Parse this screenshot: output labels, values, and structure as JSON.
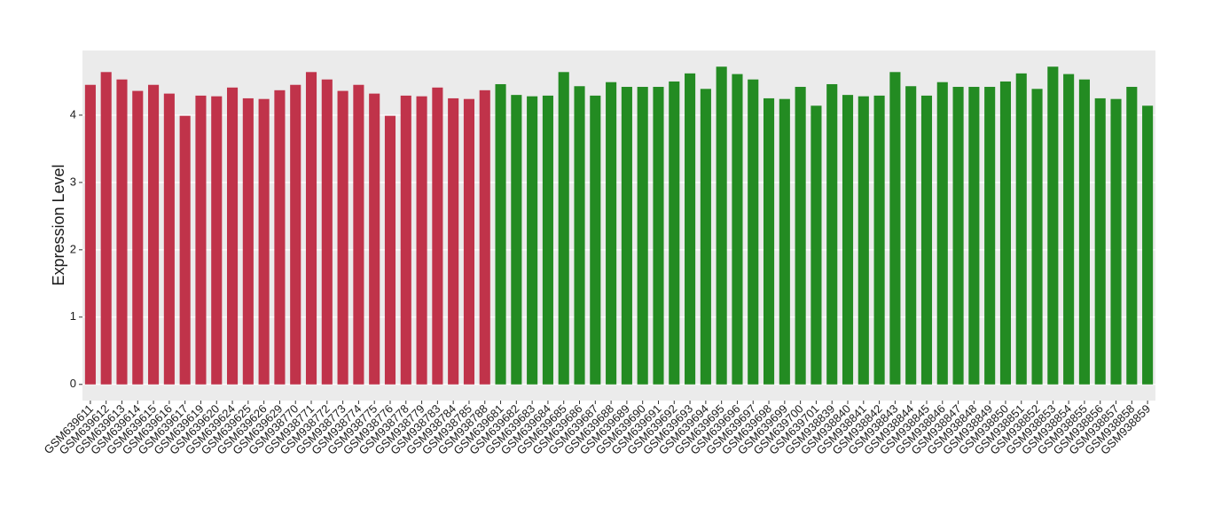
{
  "chart_data": {
    "type": "bar",
    "y_label": "Expression Level",
    "categories": [
      "GSM639611",
      "GSM639612",
      "GSM639613",
      "GSM639614",
      "GSM639615",
      "GSM639616",
      "GSM639617",
      "GSM639619",
      "GSM639620",
      "GSM639624",
      "GSM639625",
      "GSM639626",
      "GSM639629",
      "GSM938770",
      "GSM938771",
      "GSM938772",
      "GSM938773",
      "GSM938774",
      "GSM938775",
      "GSM938776",
      "GSM938778",
      "GSM938779",
      "GSM938783",
      "GSM938784",
      "GSM938785",
      "GSM938788",
      "GSM639681",
      "GSM639682",
      "GSM639683",
      "GSM639684",
      "GSM639685",
      "GSM639686",
      "GSM639687",
      "GSM639688",
      "GSM639689",
      "GSM639690",
      "GSM639691",
      "GSM639692",
      "GSM639693",
      "GSM639694",
      "GSM639695",
      "GSM639696",
      "GSM639697",
      "GSM639698",
      "GSM639699",
      "GSM639700",
      "GSM639701",
      "GSM938839",
      "GSM938840",
      "GSM938841",
      "GSM938842",
      "GSM938843",
      "GSM938844",
      "GSM938845",
      "GSM938846",
      "GSM938847",
      "GSM938848",
      "GSM938849",
      "GSM938850",
      "GSM938851",
      "GSM938852",
      "GSM938853",
      "GSM938854",
      "GSM938855",
      "GSM938856",
      "GSM938857",
      "GSM938858",
      "GSM938859"
    ],
    "values": [
      4.45,
      4.64,
      4.53,
      4.36,
      4.45,
      4.32,
      3.99,
      4.29,
      4.28,
      4.41,
      4.25,
      4.24,
      4.37,
      4.45,
      4.64,
      4.53,
      4.36,
      4.45,
      4.32,
      3.99,
      4.29,
      4.28,
      4.41,
      4.25,
      4.24,
      4.37,
      4.46,
      4.3,
      4.28,
      4.29,
      4.64,
      4.43,
      4.29,
      4.49,
      4.42,
      4.42,
      4.42,
      4.5,
      4.62,
      4.39,
      4.72,
      4.61,
      4.53,
      4.25,
      4.24,
      4.42,
      4.14,
      4.46,
      4.3,
      4.28,
      4.29,
      4.64,
      4.43,
      4.29,
      4.49,
      4.42,
      4.42,
      4.42,
      4.5,
      4.62,
      4.39,
      4.72,
      4.61,
      4.53,
      4.25,
      4.24,
      4.42,
      4.14
    ],
    "colors": [
      "#c0334a",
      "#c0334a",
      "#c0334a",
      "#c0334a",
      "#c0334a",
      "#c0334a",
      "#c0334a",
      "#c0334a",
      "#c0334a",
      "#c0334a",
      "#c0334a",
      "#c0334a",
      "#c0334a",
      "#c0334a",
      "#c0334a",
      "#c0334a",
      "#c0334a",
      "#c0334a",
      "#c0334a",
      "#c0334a",
      "#c0334a",
      "#c0334a",
      "#c0334a",
      "#c0334a",
      "#c0334a",
      "#c0334a",
      "#238b22",
      "#238b22",
      "#238b22",
      "#238b22",
      "#238b22",
      "#238b22",
      "#238b22",
      "#238b22",
      "#238b22",
      "#238b22",
      "#238b22",
      "#238b22",
      "#238b22",
      "#238b22",
      "#238b22",
      "#238b22",
      "#238b22",
      "#238b22",
      "#238b22",
      "#238b22",
      "#238b22",
      "#238b22",
      "#238b22",
      "#238b22",
      "#238b22",
      "#238b22",
      "#238b22",
      "#238b22",
      "#238b22",
      "#238b22",
      "#238b22",
      "#238b22",
      "#238b22",
      "#238b22",
      "#238b22",
      "#238b22",
      "#238b22",
      "#238b22",
      "#238b22",
      "#238b22",
      "#238b22",
      "#238b22"
    ],
    "ylim": [
      -0.24,
      4.96
    ],
    "yticks": [
      0,
      1,
      2,
      3,
      4
    ],
    "grid": true
  }
}
